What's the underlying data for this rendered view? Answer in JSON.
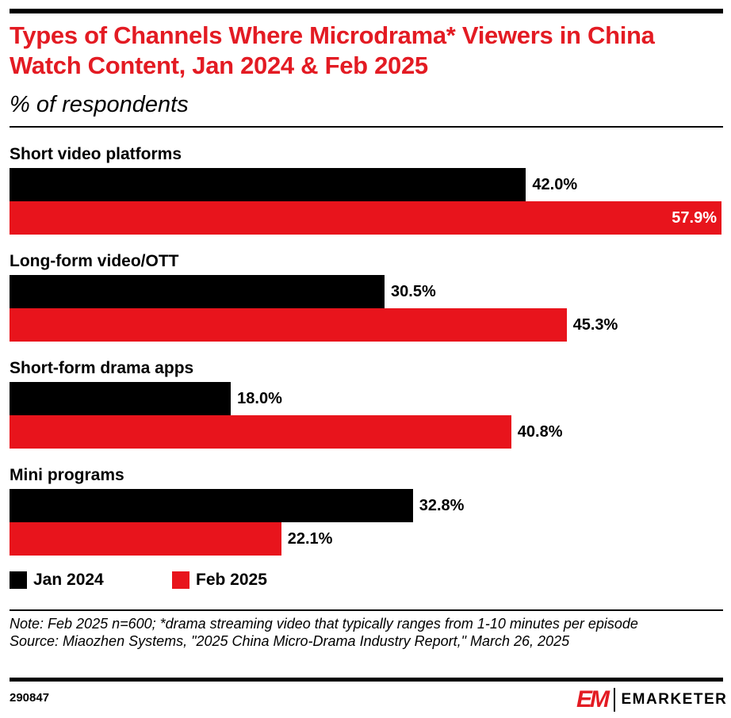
{
  "chart_data": {
    "type": "bar",
    "orientation": "horizontal",
    "title": "Types of Channels Where Microdrama* Viewers in China Watch Content, Jan 2024 & Feb 2025",
    "subtitle": "% of respondents",
    "categories": [
      "Short video platforms",
      "Long-form video/OTT",
      "Short-form drama apps",
      "Mini programs"
    ],
    "series": [
      {
        "name": "Jan 2024",
        "color": "#000000",
        "values": [
          42.0,
          30.5,
          18.0,
          32.8
        ],
        "labels": [
          "42.0%",
          "30.5%",
          "18.0%",
          "32.8%"
        ]
      },
      {
        "name": "Feb 2025",
        "color": "#e8141c",
        "values": [
          57.9,
          45.3,
          40.8,
          22.1
        ],
        "labels": [
          "57.9%",
          "45.3%",
          "40.8%",
          "22.1%"
        ]
      }
    ],
    "xlim": [
      0,
      57.9
    ],
    "legend": "bottom-left"
  },
  "footer": {
    "note": "Note: Feb 2025 n=600; *drama streaming video that typically ranges from 1-10 minutes per episode",
    "source": "Source: Miaozhen Systems, \"2025 China Micro-Drama Industry Report,\" March 26, 2025",
    "id": "290847",
    "logo_mark": "EM",
    "logo_text": "EMARKETER"
  }
}
